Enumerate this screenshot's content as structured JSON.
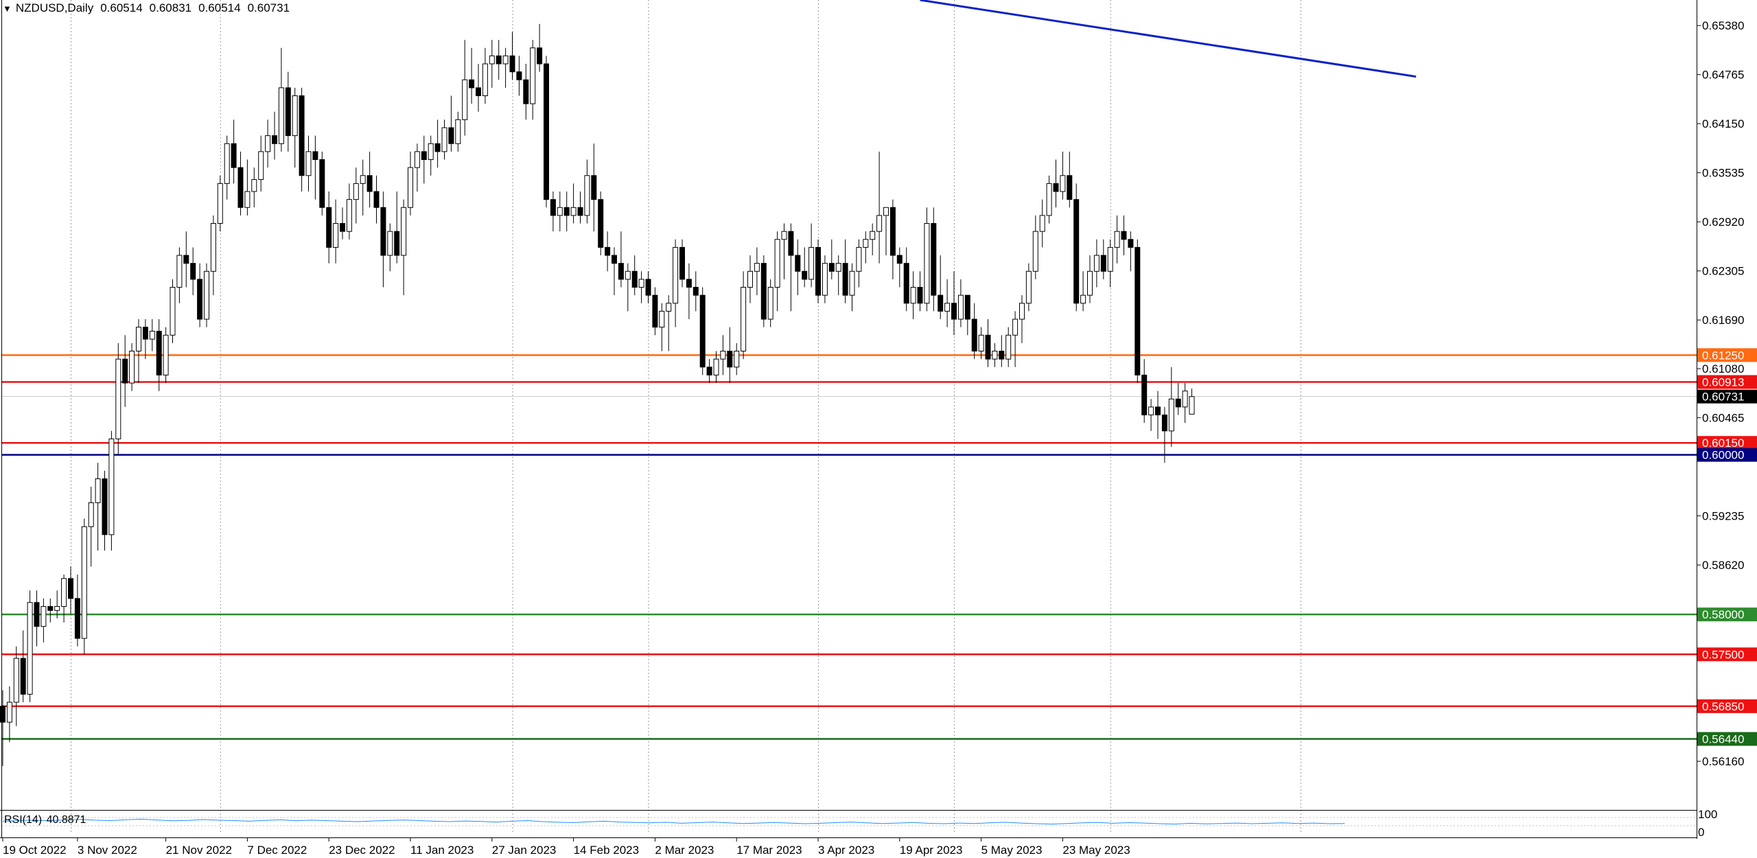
{
  "header": {
    "symbol": "NZDUSD,Daily",
    "open": "0.60514",
    "high": "0.60831",
    "low": "0.60514",
    "close": "0.60731"
  },
  "rsi": {
    "label": "RSI(14)",
    "value": "40.8871",
    "scale_top": "100",
    "scale_bottom": "0",
    "line_color": "#1e90ff"
  },
  "chart_data": {
    "type": "candlestick",
    "symbol": "NZDUSD",
    "timeframe": "Daily",
    "y_ticks": [
      0.5616,
      0.5862,
      0.59235,
      0.60465,
      0.6108,
      0.6169,
      0.62305,
      0.6292,
      0.63535,
      0.6415,
      0.64765,
      0.6538
    ],
    "y_tick_labels": [
      "0.56160",
      "0.58620",
      "0.59235",
      "0.60465",
      "0.61080",
      "0.61690",
      "0.62305",
      "0.62920",
      "0.63535",
      "0.64150",
      "0.64765",
      "0.65380"
    ],
    "ylim": [
      0.5555,
      0.657
    ],
    "x_ticks": [
      {
        "label": "19 Oct 2022",
        "bar": 0
      },
      {
        "label": "3 Nov 2022",
        "bar": 11
      },
      {
        "label": "21 Nov 2022",
        "bar": 24
      },
      {
        "label": "7 Dec 2022",
        "bar": 36
      },
      {
        "label": "23 Dec 2022",
        "bar": 48
      },
      {
        "label": "11 Jan 2023",
        "bar": 60
      },
      {
        "label": "27 Jan 2023",
        "bar": 72
      },
      {
        "label": "14 Feb 2023",
        "bar": 84
      },
      {
        "label": "2 Mar 2023",
        "bar": 96
      },
      {
        "label": "17 Mar 2023",
        "bar": 108
      },
      {
        "label": "3 Apr 2023",
        "bar": 120
      },
      {
        "label": "19 Apr 2023",
        "bar": 132
      },
      {
        "label": "5 May 2023",
        "bar": 144
      },
      {
        "label": "23 May 2023",
        "bar": 156
      }
    ],
    "vertical_grid_bars": [
      10,
      32,
      75,
      95,
      120,
      140,
      163,
      191
    ],
    "levels": [
      {
        "price": 0.6125,
        "label": "0.61250",
        "color": "#ff6a13"
      },
      {
        "price": 0.60913,
        "label": "0.60913",
        "color": "#ee1111"
      },
      {
        "price": 0.60731,
        "label": "0.60731",
        "color": "#000000"
      },
      {
        "price": 0.6015,
        "label": "0.60150",
        "color": "#ee1111"
      },
      {
        "price": 0.6,
        "label": "0.60000",
        "color": "#000080"
      },
      {
        "price": 0.58,
        "label": "0.58000",
        "color": "#2e8b2e"
      },
      {
        "price": 0.575,
        "label": "0.57500",
        "color": "#ee1111"
      },
      {
        "price": 0.5685,
        "label": "0.56850",
        "color": "#ee1111"
      },
      {
        "price": 0.5644,
        "label": "0.56440",
        "color": "#1a6b1a"
      }
    ],
    "trendline": {
      "bar_start": 135,
      "price_start": 0.657,
      "bar_end": 208,
      "price_end": 0.6474,
      "color": "#0b22c8"
    },
    "candles": [
      [
        0.5685,
        0.5705,
        0.561,
        0.5665
      ],
      [
        0.5665,
        0.571,
        0.564,
        0.569
      ],
      [
        0.569,
        0.576,
        0.566,
        0.5745
      ],
      [
        0.5745,
        0.578,
        0.569,
        0.57
      ],
      [
        0.57,
        0.583,
        0.569,
        0.5815
      ],
      [
        0.5815,
        0.583,
        0.576,
        0.5785
      ],
      [
        0.5785,
        0.582,
        0.5765,
        0.581
      ],
      [
        0.581,
        0.582,
        0.579,
        0.5805
      ],
      [
        0.5805,
        0.583,
        0.5795,
        0.581
      ],
      [
        0.581,
        0.585,
        0.579,
        0.5845
      ],
      [
        0.5845,
        0.586,
        0.58,
        0.582
      ],
      [
        0.582,
        0.585,
        0.576,
        0.577
      ],
      [
        0.577,
        0.592,
        0.575,
        0.591
      ],
      [
        0.591,
        0.596,
        0.586,
        0.594
      ],
      [
        0.594,
        0.599,
        0.588,
        0.597
      ],
      [
        0.597,
        0.598,
        0.588,
        0.59
      ],
      [
        0.59,
        0.603,
        0.588,
        0.602
      ],
      [
        0.602,
        0.614,
        0.6,
        0.612
      ],
      [
        0.612,
        0.615,
        0.606,
        0.609
      ],
      [
        0.609,
        0.614,
        0.608,
        0.613
      ],
      [
        0.613,
        0.617,
        0.609,
        0.616
      ],
      [
        0.616,
        0.617,
        0.612,
        0.6145
      ],
      [
        0.6145,
        0.617,
        0.613,
        0.6155
      ],
      [
        0.6155,
        0.617,
        0.608,
        0.61
      ],
      [
        0.61,
        0.616,
        0.609,
        0.615
      ],
      [
        0.615,
        0.622,
        0.614,
        0.621
      ],
      [
        0.621,
        0.626,
        0.619,
        0.625
      ],
      [
        0.625,
        0.628,
        0.621,
        0.624
      ],
      [
        0.624,
        0.626,
        0.62,
        0.622
      ],
      [
        0.622,
        0.624,
        0.616,
        0.617
      ],
      [
        0.617,
        0.624,
        0.616,
        0.623
      ],
      [
        0.623,
        0.63,
        0.62,
        0.629
      ],
      [
        0.629,
        0.635,
        0.628,
        0.634
      ],
      [
        0.634,
        0.64,
        0.632,
        0.639
      ],
      [
        0.639,
        0.642,
        0.634,
        0.636
      ],
      [
        0.636,
        0.638,
        0.63,
        0.631
      ],
      [
        0.631,
        0.637,
        0.63,
        0.633
      ],
      [
        0.633,
        0.636,
        0.631,
        0.6345
      ],
      [
        0.6345,
        0.64,
        0.633,
        0.638
      ],
      [
        0.638,
        0.642,
        0.636,
        0.64
      ],
      [
        0.64,
        0.643,
        0.637,
        0.639
      ],
      [
        0.639,
        0.651,
        0.638,
        0.646
      ],
      [
        0.646,
        0.648,
        0.638,
        0.64
      ],
      [
        0.64,
        0.646,
        0.636,
        0.645
      ],
      [
        0.645,
        0.646,
        0.633,
        0.635
      ],
      [
        0.635,
        0.64,
        0.633,
        0.638
      ],
      [
        0.638,
        0.64,
        0.632,
        0.637
      ],
      [
        0.637,
        0.638,
        0.63,
        0.631
      ],
      [
        0.631,
        0.633,
        0.624,
        0.626
      ],
      [
        0.626,
        0.632,
        0.624,
        0.629
      ],
      [
        0.629,
        0.631,
        0.627,
        0.628
      ],
      [
        0.628,
        0.634,
        0.627,
        0.632
      ],
      [
        0.632,
        0.636,
        0.629,
        0.634
      ],
      [
        0.634,
        0.637,
        0.63,
        0.635
      ],
      [
        0.635,
        0.638,
        0.631,
        0.633
      ],
      [
        0.633,
        0.635,
        0.629,
        0.631
      ],
      [
        0.631,
        0.633,
        0.621,
        0.625
      ],
      [
        0.625,
        0.629,
        0.623,
        0.628
      ],
      [
        0.628,
        0.633,
        0.624,
        0.625
      ],
      [
        0.625,
        0.632,
        0.62,
        0.631
      ],
      [
        0.631,
        0.638,
        0.63,
        0.636
      ],
      [
        0.636,
        0.639,
        0.633,
        0.638
      ],
      [
        0.638,
        0.64,
        0.634,
        0.637
      ],
      [
        0.637,
        0.64,
        0.635,
        0.639
      ],
      [
        0.639,
        0.642,
        0.636,
        0.638
      ],
      [
        0.638,
        0.642,
        0.637,
        0.641
      ],
      [
        0.641,
        0.645,
        0.638,
        0.639
      ],
      [
        0.639,
        0.643,
        0.638,
        0.642
      ],
      [
        0.642,
        0.652,
        0.64,
        0.647
      ],
      [
        0.647,
        0.651,
        0.644,
        0.646
      ],
      [
        0.646,
        0.649,
        0.643,
        0.645
      ],
      [
        0.645,
        0.651,
        0.644,
        0.649
      ],
      [
        0.649,
        0.652,
        0.646,
        0.65
      ],
      [
        0.65,
        0.652,
        0.647,
        0.649
      ],
      [
        0.649,
        0.651,
        0.646,
        0.65
      ],
      [
        0.65,
        0.653,
        0.647,
        0.648
      ],
      [
        0.648,
        0.65,
        0.645,
        0.647
      ],
      [
        0.647,
        0.649,
        0.642,
        0.644
      ],
      [
        0.644,
        0.652,
        0.642,
        0.651
      ],
      [
        0.651,
        0.654,
        0.648,
        0.649
      ],
      [
        0.649,
        0.65,
        0.631,
        0.632
      ],
      [
        0.632,
        0.633,
        0.628,
        0.63
      ],
      [
        0.63,
        0.633,
        0.628,
        0.631
      ],
      [
        0.631,
        0.633,
        0.628,
        0.63
      ],
      [
        0.63,
        0.634,
        0.629,
        0.631
      ],
      [
        0.631,
        0.633,
        0.629,
        0.63
      ],
      [
        0.63,
        0.637,
        0.629,
        0.635
      ],
      [
        0.635,
        0.639,
        0.628,
        0.632
      ],
      [
        0.632,
        0.633,
        0.625,
        0.626
      ],
      [
        0.626,
        0.628,
        0.623,
        0.625
      ],
      [
        0.625,
        0.626,
        0.62,
        0.624
      ],
      [
        0.624,
        0.628,
        0.621,
        0.622
      ],
      [
        0.622,
        0.624,
        0.618,
        0.623
      ],
      [
        0.623,
        0.625,
        0.62,
        0.621
      ],
      [
        0.621,
        0.623,
        0.619,
        0.622
      ],
      [
        0.622,
        0.623,
        0.619,
        0.62
      ],
      [
        0.62,
        0.621,
        0.615,
        0.616
      ],
      [
        0.616,
        0.619,
        0.613,
        0.618
      ],
      [
        0.618,
        0.62,
        0.613,
        0.619
      ],
      [
        0.619,
        0.627,
        0.616,
        0.626
      ],
      [
        0.626,
        0.627,
        0.621,
        0.622
      ],
      [
        0.622,
        0.624,
        0.617,
        0.621
      ],
      [
        0.621,
        0.623,
        0.618,
        0.62
      ],
      [
        0.62,
        0.621,
        0.61,
        0.611
      ],
      [
        0.611,
        0.612,
        0.609,
        0.61
      ],
      [
        0.61,
        0.613,
        0.609,
        0.612
      ],
      [
        0.612,
        0.615,
        0.61,
        0.613
      ],
      [
        0.613,
        0.616,
        0.609,
        0.611
      ],
      [
        0.611,
        0.614,
        0.61,
        0.613
      ],
      [
        0.613,
        0.623,
        0.612,
        0.621
      ],
      [
        0.621,
        0.625,
        0.619,
        0.623
      ],
      [
        0.623,
        0.626,
        0.62,
        0.624
      ],
      [
        0.624,
        0.625,
        0.616,
        0.617
      ],
      [
        0.617,
        0.622,
        0.616,
        0.621
      ],
      [
        0.621,
        0.628,
        0.618,
        0.627
      ],
      [
        0.627,
        0.629,
        0.622,
        0.628
      ],
      [
        0.628,
        0.629,
        0.618,
        0.625
      ],
      [
        0.625,
        0.627,
        0.62,
        0.623
      ],
      [
        0.623,
        0.626,
        0.621,
        0.622
      ],
      [
        0.622,
        0.629,
        0.621,
        0.626
      ],
      [
        0.626,
        0.627,
        0.619,
        0.62
      ],
      [
        0.62,
        0.625,
        0.619,
        0.624
      ],
      [
        0.624,
        0.627,
        0.622,
        0.623
      ],
      [
        0.623,
        0.625,
        0.62,
        0.624
      ],
      [
        0.624,
        0.627,
        0.619,
        0.62
      ],
      [
        0.62,
        0.624,
        0.618,
        0.623
      ],
      [
        0.623,
        0.627,
        0.621,
        0.626
      ],
      [
        0.626,
        0.628,
        0.624,
        0.627
      ],
      [
        0.627,
        0.629,
        0.625,
        0.628
      ],
      [
        0.628,
        0.638,
        0.624,
        0.63
      ],
      [
        0.63,
        0.631,
        0.625,
        0.631
      ],
      [
        0.631,
        0.632,
        0.622,
        0.625
      ],
      [
        0.625,
        0.626,
        0.621,
        0.624
      ],
      [
        0.624,
        0.626,
        0.618,
        0.619
      ],
      [
        0.619,
        0.623,
        0.617,
        0.621
      ],
      [
        0.621,
        0.623,
        0.618,
        0.619
      ],
      [
        0.619,
        0.631,
        0.618,
        0.629
      ],
      [
        0.629,
        0.631,
        0.618,
        0.62
      ],
      [
        0.62,
        0.625,
        0.617,
        0.618
      ],
      [
        0.618,
        0.622,
        0.616,
        0.619
      ],
      [
        0.619,
        0.623,
        0.615,
        0.617
      ],
      [
        0.617,
        0.622,
        0.616,
        0.62
      ],
      [
        0.62,
        0.62,
        0.615,
        0.617
      ],
      [
        0.617,
        0.619,
        0.612,
        0.613
      ],
      [
        0.613,
        0.616,
        0.612,
        0.615
      ],
      [
        0.615,
        0.617,
        0.611,
        0.612
      ],
      [
        0.612,
        0.614,
        0.611,
        0.613
      ],
      [
        0.613,
        0.615,
        0.611,
        0.612
      ],
      [
        0.612,
        0.616,
        0.611,
        0.615
      ],
      [
        0.615,
        0.618,
        0.611,
        0.617
      ],
      [
        0.617,
        0.62,
        0.614,
        0.619
      ],
      [
        0.619,
        0.624,
        0.618,
        0.623
      ],
      [
        0.623,
        0.63,
        0.622,
        0.628
      ],
      [
        0.628,
        0.632,
        0.626,
        0.63
      ],
      [
        0.63,
        0.635,
        0.629,
        0.634
      ],
      [
        0.634,
        0.637,
        0.631,
        0.633
      ],
      [
        0.633,
        0.638,
        0.632,
        0.635
      ],
      [
        0.635,
        0.638,
        0.631,
        0.632
      ],
      [
        0.632,
        0.634,
        0.618,
        0.619
      ],
      [
        0.619,
        0.623,
        0.618,
        0.62
      ],
      [
        0.62,
        0.625,
        0.619,
        0.623
      ],
      [
        0.623,
        0.627,
        0.621,
        0.625
      ],
      [
        0.625,
        0.627,
        0.622,
        0.623
      ],
      [
        0.623,
        0.627,
        0.621,
        0.626
      ],
      [
        0.626,
        0.63,
        0.624,
        0.628
      ],
      [
        0.628,
        0.63,
        0.625,
        0.627
      ],
      [
        0.627,
        0.628,
        0.623,
        0.626
      ],
      [
        0.626,
        0.627,
        0.609,
        0.61
      ],
      [
        0.61,
        0.612,
        0.604,
        0.605
      ],
      [
        0.605,
        0.607,
        0.603,
        0.606
      ],
      [
        0.606,
        0.608,
        0.602,
        0.605
      ],
      [
        0.605,
        0.606,
        0.599,
        0.603
      ],
      [
        0.603,
        0.611,
        0.601,
        0.607
      ],
      [
        0.607,
        0.609,
        0.605,
        0.606
      ],
      [
        0.606,
        0.609,
        0.604,
        0.608
      ],
      [
        0.6051,
        0.6083,
        0.6051,
        0.6073
      ]
    ],
    "rsi_values": [
      52,
      55,
      57,
      54,
      58,
      61,
      57,
      55,
      59,
      62,
      58,
      54,
      56,
      60,
      57,
      55,
      52,
      56,
      59,
      54,
      57,
      55,
      52,
      50,
      53,
      56,
      58,
      55,
      52,
      50,
      53,
      51,
      48,
      52,
      55,
      50,
      47,
      45,
      49,
      52,
      48,
      46,
      44,
      47,
      42,
      45,
      48,
      44,
      41,
      43,
      46,
      43,
      40,
      42,
      45,
      48,
      44,
      41,
      43,
      46,
      42,
      40,
      43,
      41,
      44,
      47,
      43,
      40,
      38,
      41,
      44,
      46,
      42,
      45,
      43,
      40,
      38,
      42,
      39,
      41,
      43,
      40,
      42,
      44,
      41,
      43,
      40,
      41
    ]
  }
}
